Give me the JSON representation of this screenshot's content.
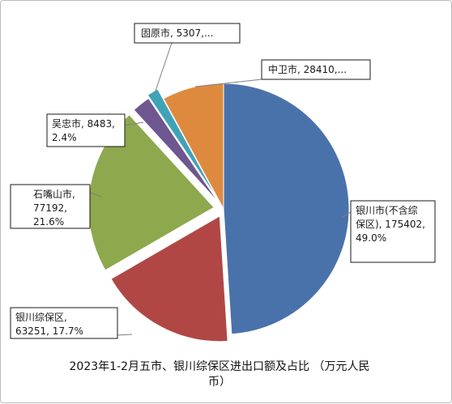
{
  "chart_data": {
    "type": "pie",
    "title": "2023年1-2月五市、银川综保区进出口额及占比 （万元人民币）",
    "title_lines": [
      "2023年1-2月五市、银川综保区进出口额及占比 （万元人民",
      "币）"
    ],
    "unit": "万元人民币",
    "slices": [
      {
        "name": "银川市(不含综保区)",
        "value": 175402,
        "percent": 49.0,
        "color": "#4a72aa",
        "label_lines": [
          "银川市(不含综",
          "保区), 175402,",
          "49.0%"
        ]
      },
      {
        "name": "银川综保区",
        "value": 63251,
        "percent": 17.7,
        "color": "#b04744",
        "label_lines": [
          "银川综保区,",
          "63251, 17.7%"
        ]
      },
      {
        "name": "石嘴山市",
        "value": 77192,
        "percent": 21.6,
        "color": "#8ea84e",
        "label_lines": [
          "石嘴山市,",
          "77192,",
          "21.6%"
        ]
      },
      {
        "name": "吴忠市",
        "value": 8483,
        "percent": 2.4,
        "color": "#6e5690",
        "label_lines": [
          "吴忠市, 8483,",
          "2.4%"
        ]
      },
      {
        "name": "固原市",
        "value": 5307,
        "percent": null,
        "color": "#3fa3b8",
        "label_lines": [
          "固原市, 5307,..."
        ]
      },
      {
        "name": "中卫市",
        "value": 28410,
        "percent": null,
        "color": "#de8a3e",
        "label_lines": [
          "中卫市, 28410,..."
        ]
      }
    ],
    "legend": "none",
    "exploded": [
      "银川综保区",
      "石嘴山市",
      "吴忠市",
      "固原市"
    ]
  }
}
